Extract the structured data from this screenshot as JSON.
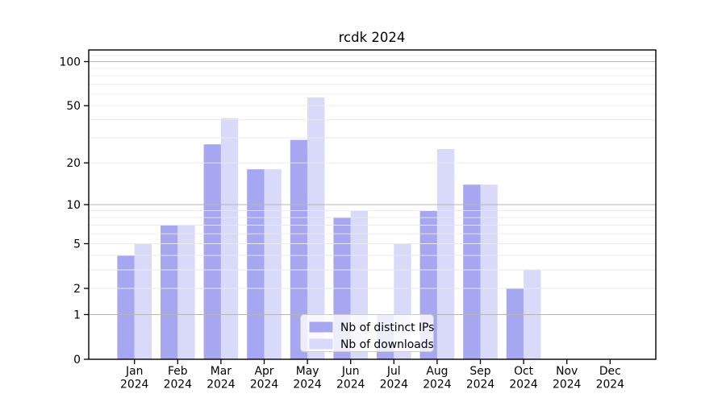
{
  "title": "rcdk 2024",
  "colors": {
    "distinct_ips": "#a6a6f1",
    "downloads": "#d9d9fa",
    "grid_major": "#b5b5b5",
    "grid_minor": "#e9e9e9",
    "axis": "#000000",
    "legend_border": "#cccccc",
    "legend_background": "rgba(255,255,255,0.8)"
  },
  "legend": {
    "items": [
      {
        "label": "Nb of distinct IPs",
        "color_key": "distinct_ips"
      },
      {
        "label": "Nb of downloads",
        "color_key": "downloads"
      }
    ]
  },
  "chart_data": {
    "type": "bar",
    "title": "rcdk 2024",
    "categories": [
      "Jan",
      "Feb",
      "Mar",
      "Apr",
      "May",
      "Jun",
      "Jul",
      "Aug",
      "Sep",
      "Oct",
      "Nov",
      "Dec"
    ],
    "category_year": "2024",
    "series": [
      {
        "name": "Nb of distinct IPs",
        "color_key": "distinct_ips",
        "values": [
          4,
          7,
          27,
          18,
          29,
          8,
          1,
          9,
          14,
          2,
          0,
          0
        ]
      },
      {
        "name": "Nb of downloads",
        "color_key": "downloads",
        "values": [
          5,
          7,
          41,
          18,
          57,
          9,
          5,
          25,
          14,
          3,
          0,
          0
        ]
      }
    ],
    "xlabel": "",
    "ylabel": "",
    "yscale": "log1p",
    "ylim": [
      0,
      120
    ],
    "yticks": [
      100,
      50,
      20,
      10,
      5,
      2,
      1,
      0
    ],
    "grid": "horizontal, log minor + major, drawn above bars",
    "legend_position": "bottom-center"
  }
}
